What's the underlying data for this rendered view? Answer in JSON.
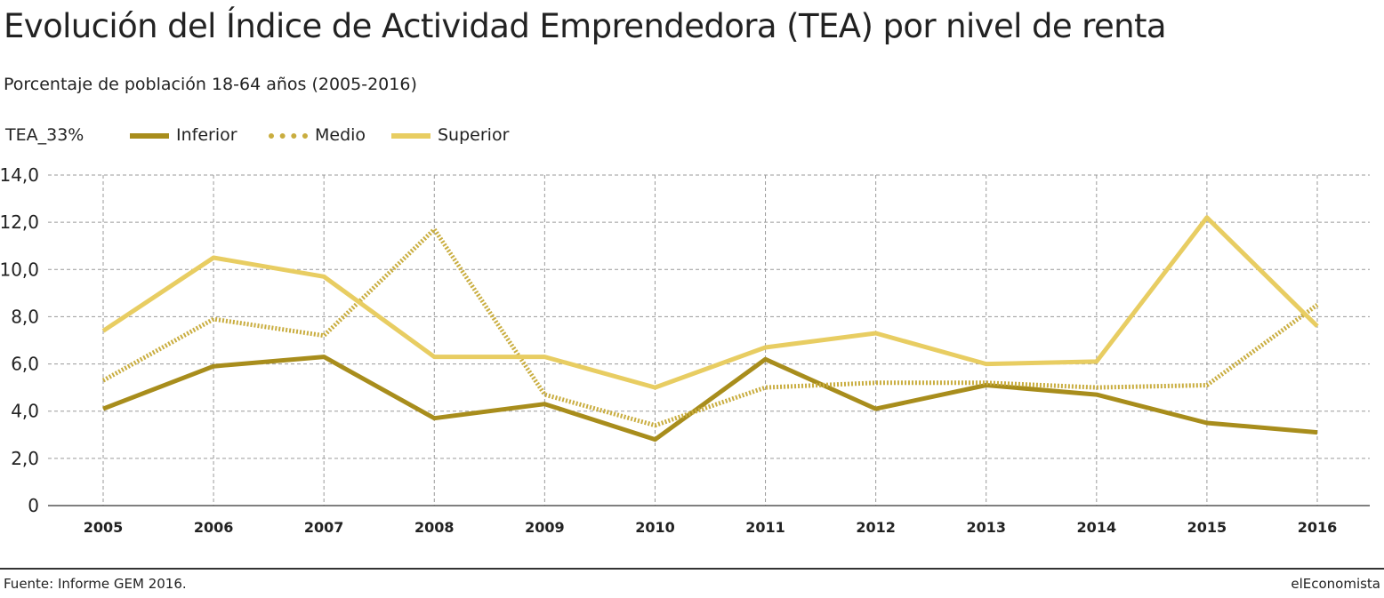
{
  "header": {
    "title": "Evolución del Índice de Actividad Emprendedora (TEA) por nivel de renta",
    "subtitle": "Porcentaje de población 18-64 años (2005-2016)"
  },
  "legend": {
    "title": "TEA_33%",
    "items": [
      {
        "label": "Inferior",
        "color": "#a88d1c",
        "style": "solid"
      },
      {
        "label": "Medio",
        "color": "#c9ad3f",
        "style": "dotted"
      },
      {
        "label": "Superior",
        "color": "#e8cd62",
        "style": "solid"
      }
    ]
  },
  "footer": {
    "source": "Fuente: Informe GEM 2016.",
    "brand": "elEconomista"
  },
  "chart_data": {
    "type": "line",
    "x": [
      "2005",
      "2006",
      "2007",
      "2008",
      "2009",
      "2010",
      "2011",
      "2012",
      "2013",
      "2014",
      "2015",
      "2016"
    ],
    "ylim": [
      0,
      14
    ],
    "yticks": [
      0,
      2,
      4,
      6,
      8,
      10,
      12,
      14
    ],
    "ytick_labels": [
      "0",
      "2,0",
      "4,0",
      "6,0",
      "8,0",
      "10,0",
      "12,0",
      "14,0"
    ],
    "grid": true,
    "series": [
      {
        "name": "Inferior",
        "color": "#a88d1c",
        "style": "solid",
        "values": [
          4.1,
          5.9,
          6.3,
          3.7,
          4.3,
          2.8,
          6.2,
          4.1,
          5.1,
          4.7,
          3.5,
          3.1
        ]
      },
      {
        "name": "Medio",
        "color": "#c9ad3f",
        "style": "dotted",
        "values": [
          5.3,
          7.9,
          7.2,
          11.7,
          4.7,
          3.4,
          5.0,
          5.2,
          5.2,
          5.0,
          5.1,
          8.5
        ]
      },
      {
        "name": "Superior",
        "color": "#e8cd62",
        "style": "solid",
        "values": [
          7.4,
          10.5,
          9.7,
          6.3,
          6.3,
          5.0,
          6.7,
          7.3,
          6.0,
          6.1,
          12.2,
          7.6
        ]
      }
    ]
  }
}
